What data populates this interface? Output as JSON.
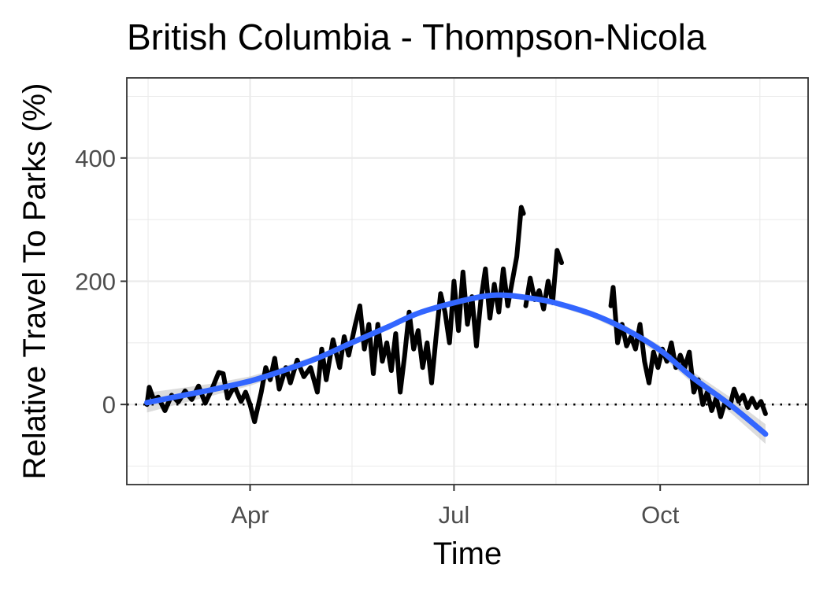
{
  "chart_data": {
    "type": "line",
    "title": "British Columbia - Thompson-Nicola",
    "xlabel": "Time",
    "ylabel": "Relative Travel To Parks (%)",
    "x_ticks": [
      {
        "label": "Apr",
        "date": "2020-04-01"
      },
      {
        "label": "Jul",
        "date": "2020-07-01"
      },
      {
        "label": "Oct",
        "date": "2020-10-01"
      }
    ],
    "y_ticks": [
      0,
      200,
      400
    ],
    "xlim": [
      "2020-02-06",
      "2020-12-06"
    ],
    "ylim": [
      -130,
      530
    ],
    "grid": true,
    "reference_line": {
      "y": 0,
      "style": "dotted"
    },
    "series": [
      {
        "type": "line",
        "color": "#000000",
        "segments": [
          [
            [
              "2020-02-15",
              0
            ],
            [
              "2020-02-16",
              28
            ],
            [
              "2020-02-18",
              8
            ],
            [
              "2020-02-20",
              12
            ],
            [
              "2020-02-23",
              -10
            ],
            [
              "2020-02-26",
              15
            ],
            [
              "2020-02-29",
              4
            ],
            [
              "2020-03-03",
              22
            ],
            [
              "2020-03-06",
              8
            ],
            [
              "2020-03-09",
              30
            ],
            [
              "2020-03-12",
              2
            ],
            [
              "2020-03-15",
              25
            ],
            [
              "2020-03-18",
              52
            ],
            [
              "2020-03-20",
              50
            ],
            [
              "2020-03-22",
              10
            ],
            [
              "2020-03-25",
              30
            ],
            [
              "2020-03-28",
              5
            ],
            [
              "2020-03-30",
              20
            ],
            [
              "2020-04-01",
              0
            ],
            [
              "2020-04-03",
              -28
            ],
            [
              "2020-04-06",
              20
            ],
            [
              "2020-04-08",
              60
            ],
            [
              "2020-04-10",
              40
            ],
            [
              "2020-04-12",
              75
            ],
            [
              "2020-04-14",
              25
            ],
            [
              "2020-04-17",
              60
            ],
            [
              "2020-04-19",
              35
            ],
            [
              "2020-04-22",
              72
            ],
            [
              "2020-04-25",
              45
            ],
            [
              "2020-04-28",
              60
            ],
            [
              "2020-05-01",
              20
            ],
            [
              "2020-05-03",
              90
            ],
            [
              "2020-05-05",
              40
            ],
            [
              "2020-05-08",
              105
            ],
            [
              "2020-05-11",
              60
            ],
            [
              "2020-05-13",
              110
            ],
            [
              "2020-05-15",
              80
            ],
            [
              "2020-05-18",
              130
            ],
            [
              "2020-05-20",
              160
            ],
            [
              "2020-05-22",
              90
            ],
            [
              "2020-05-24",
              130
            ],
            [
              "2020-05-26",
              50
            ],
            [
              "2020-05-28",
              130
            ],
            [
              "2020-05-30",
              70
            ],
            [
              "2020-06-01",
              100
            ],
            [
              "2020-06-03",
              55
            ],
            [
              "2020-06-05",
              115
            ],
            [
              "2020-06-07",
              20
            ],
            [
              "2020-06-09",
              80
            ],
            [
              "2020-06-11",
              150
            ],
            [
              "2020-06-13",
              90
            ],
            [
              "2020-06-15",
              120
            ],
            [
              "2020-06-17",
              60
            ],
            [
              "2020-06-19",
              100
            ],
            [
              "2020-06-21",
              35
            ],
            [
              "2020-06-23",
              110
            ],
            [
              "2020-06-25",
              180
            ],
            [
              "2020-06-27",
              150
            ],
            [
              "2020-06-29",
              100
            ],
            [
              "2020-07-01",
              200
            ],
            [
              "2020-07-03",
              120
            ],
            [
              "2020-07-05",
              215
            ],
            [
              "2020-07-07",
              130
            ],
            [
              "2020-07-09",
              175
            ],
            [
              "2020-07-11",
              95
            ],
            [
              "2020-07-13",
              170
            ],
            [
              "2020-07-15",
              220
            ],
            [
              "2020-07-17",
              140
            ],
            [
              "2020-07-19",
              195
            ],
            [
              "2020-07-21",
              150
            ],
            [
              "2020-07-23",
              220
            ],
            [
              "2020-07-25",
              160
            ],
            [
              "2020-07-27",
              200
            ],
            [
              "2020-07-29",
              240
            ],
            [
              "2020-07-31",
              320
            ],
            [
              "2020-08-01",
              310
            ]
          ],
          [
            [
              "2020-08-02",
              160
            ],
            [
              "2020-08-04",
              205
            ],
            [
              "2020-08-06",
              170
            ],
            [
              "2020-08-08",
              185
            ],
            [
              "2020-08-10",
              155
            ],
            [
              "2020-08-12",
              200
            ],
            [
              "2020-08-14",
              165
            ],
            [
              "2020-08-16",
              250
            ],
            [
              "2020-08-18",
              230
            ]
          ],
          [
            [
              "2020-09-09",
              160
            ],
            [
              "2020-09-10",
              190
            ],
            [
              "2020-09-12",
              100
            ],
            [
              "2020-09-14",
              130
            ],
            [
              "2020-09-16",
              95
            ],
            [
              "2020-09-18",
              110
            ],
            [
              "2020-09-20",
              90
            ],
            [
              "2020-09-22",
              130
            ],
            [
              "2020-09-24",
              70
            ],
            [
              "2020-09-26",
              35
            ],
            [
              "2020-09-28",
              85
            ],
            [
              "2020-09-30",
              60
            ],
            [
              "2020-10-02",
              90
            ],
            [
              "2020-10-04",
              70
            ],
            [
              "2020-10-06",
              100
            ],
            [
              "2020-10-08",
              60
            ],
            [
              "2020-10-10",
              80
            ],
            [
              "2020-10-12",
              60
            ],
            [
              "2020-10-14",
              85
            ],
            [
              "2020-10-16",
              20
            ],
            [
              "2020-10-18",
              40
            ],
            [
              "2020-10-20",
              0
            ],
            [
              "2020-10-22",
              20
            ],
            [
              "2020-10-24",
              -10
            ],
            [
              "2020-10-26",
              10
            ],
            [
              "2020-10-28",
              -20
            ],
            [
              "2020-10-30",
              5
            ],
            [
              "2020-11-01",
              -5
            ],
            [
              "2020-11-03",
              25
            ],
            [
              "2020-11-05",
              5
            ],
            [
              "2020-11-07",
              15
            ],
            [
              "2020-11-09",
              -5
            ],
            [
              "2020-11-11",
              10
            ],
            [
              "2020-11-13",
              -5
            ],
            [
              "2020-11-15",
              5
            ],
            [
              "2020-11-17",
              -15
            ]
          ]
        ]
      },
      {
        "type": "smooth",
        "color": "#3366ff",
        "band_color": "#bfbfbf",
        "points": [
          [
            "2020-02-15",
            3
          ],
          [
            "2020-03-01",
            14
          ],
          [
            "2020-03-15",
            24
          ],
          [
            "2020-04-01",
            38
          ],
          [
            "2020-04-15",
            54
          ],
          [
            "2020-05-01",
            75
          ],
          [
            "2020-05-15",
            98
          ],
          [
            "2020-06-01",
            125
          ],
          [
            "2020-06-15",
            148
          ],
          [
            "2020-07-01",
            165
          ],
          [
            "2020-07-15",
            176
          ],
          [
            "2020-07-25",
            177
          ],
          [
            "2020-08-05",
            172
          ],
          [
            "2020-08-15",
            165
          ],
          [
            "2020-09-01",
            146
          ],
          [
            "2020-09-15",
            123
          ],
          [
            "2020-10-01",
            88
          ],
          [
            "2020-10-15",
            45
          ],
          [
            "2020-11-01",
            0
          ],
          [
            "2020-11-17",
            -48
          ]
        ]
      }
    ]
  }
}
